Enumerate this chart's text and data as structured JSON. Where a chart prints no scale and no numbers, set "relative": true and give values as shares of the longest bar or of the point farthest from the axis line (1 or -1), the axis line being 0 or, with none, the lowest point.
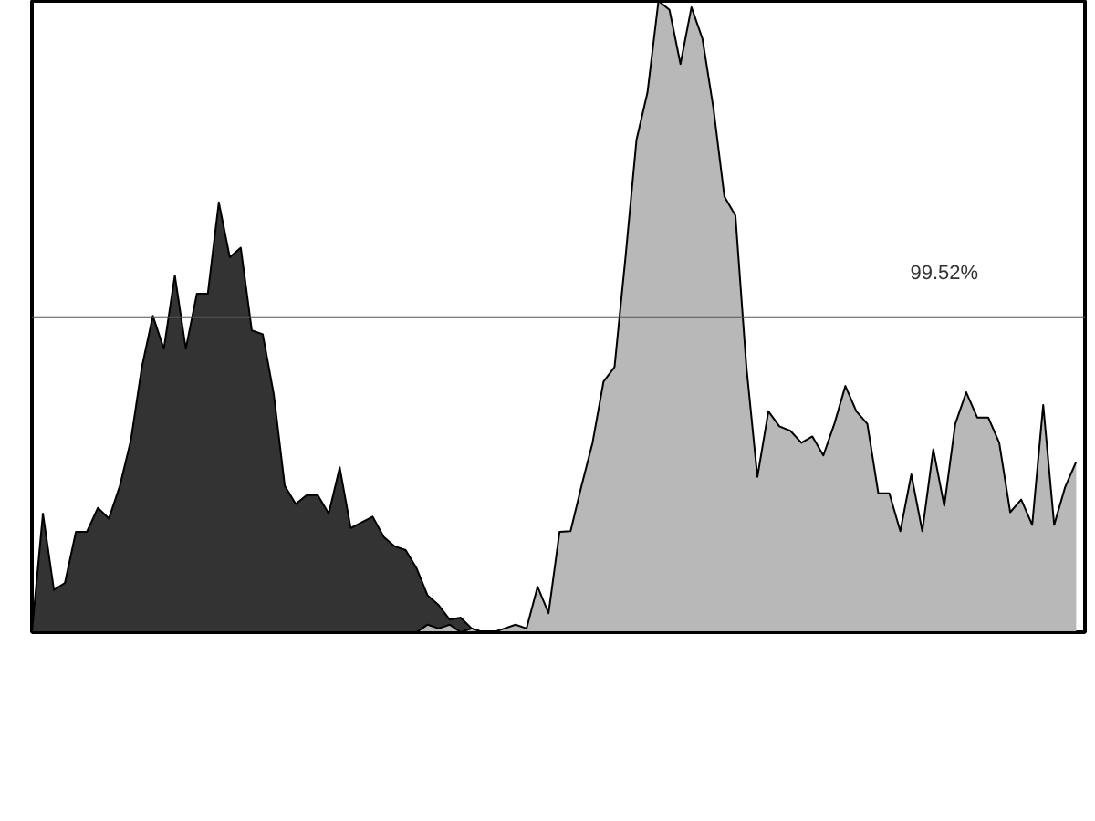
{
  "chart_data": {
    "type": "area",
    "relative": true,
    "categories": [
      null,
      null,
      null,
      null,
      null,
      null,
      null,
      null,
      null,
      null,
      null,
      null,
      null,
      null,
      null,
      null,
      null,
      null,
      null,
      null,
      null,
      null,
      null,
      null,
      null,
      null,
      null,
      null,
      null,
      null,
      null,
      null,
      null,
      null,
      null,
      null,
      null,
      null,
      null,
      null,
      null,
      null,
      null,
      null,
      null,
      null,
      null,
      null,
      null,
      null,
      null,
      null,
      null,
      null,
      null,
      null,
      null,
      null,
      null,
      null,
      null,
      null,
      null,
      null,
      null,
      null,
      null,
      null,
      null,
      null,
      null,
      null,
      null,
      null,
      null,
      null,
      null,
      null,
      null,
      null,
      null,
      null,
      null,
      null,
      null,
      null,
      null,
      null,
      null,
      null,
      null,
      null,
      null,
      null,
      null,
      null
    ],
    "series": [
      {
        "color": "#333333",
        "values": [
          0,
          0.188,
          0.067,
          0.078,
          0.159,
          0.159,
          0.197,
          0.18,
          0.232,
          0.304,
          0.42,
          0.501,
          0.449,
          0.565,
          0.449,
          0.536,
          0.536,
          0.681,
          0.594,
          0.609,
          0.478,
          0.472,
          0.377,
          0.232,
          0.203,
          0.217,
          0.217,
          0.188,
          0.261,
          0.165,
          0.174,
          0.183,
          0.151,
          0.136,
          0.13,
          0.101,
          0.058,
          0.043,
          0.02,
          0.023,
          0.006,
          0,
          0,
          0,
          0,
          0,
          0,
          0,
          0,
          0,
          0,
          0,
          0,
          0,
          0,
          0,
          0,
          0,
          0,
          0,
          0,
          0,
          0,
          0,
          0,
          0,
          0,
          0,
          0,
          0,
          0,
          0,
          0,
          0,
          0,
          0,
          0,
          0,
          0,
          0,
          0,
          0,
          0,
          0,
          0,
          0,
          0,
          0,
          0,
          0,
          0,
          0,
          0,
          0,
          0,
          0
        ]
      },
      {
        "color": "#b8b8b8",
        "values": [
          0,
          0,
          0,
          0,
          0,
          0,
          0,
          0,
          0,
          0,
          0,
          0,
          0,
          0,
          0,
          0,
          0,
          0,
          0,
          0,
          0,
          0,
          0,
          0,
          0,
          0,
          0,
          0,
          0,
          0,
          0,
          0,
          0,
          0,
          0,
          0,
          0.012,
          0.006,
          0.012,
          0,
          0.006,
          0,
          0,
          0.006,
          0.012,
          0.006,
          0.072,
          0.03,
          0.159,
          0.16,
          0.232,
          0.3,
          0.397,
          0.42,
          0.594,
          0.78,
          0.855,
          1,
          0.986,
          0.9,
          0.99,
          0.94,
          0.83,
          0.69,
          0.66,
          0.42,
          0.246,
          0.35,
          0.326,
          0.319,
          0.3,
          0.31,
          0.28,
          0.33,
          0.39,
          0.35,
          0.33,
          0.22,
          0.22,
          0.16,
          0.25,
          0.16,
          0.29,
          0.2,
          0.33,
          0.38,
          0.34,
          0.34,
          0.3,
          0.19,
          0.21,
          0.17,
          0.36,
          0.17,
          0.23,
          0.27
        ]
      }
    ],
    "ref_lines": [
      {
        "axis": "y",
        "value": 0.499,
        "color": "#555555"
      }
    ],
    "annotations": [
      "99.52%"
    ],
    "grid": false
  }
}
